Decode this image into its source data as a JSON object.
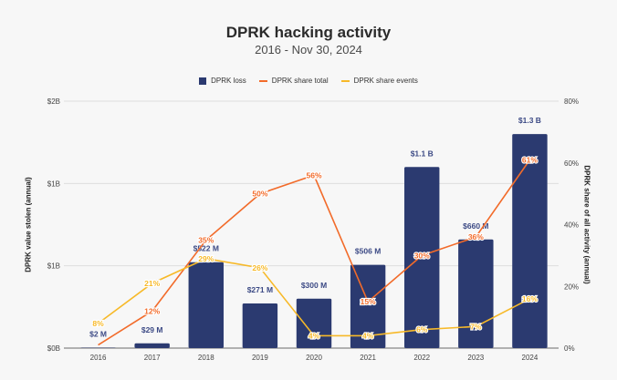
{
  "chart_data": {
    "type": "bar",
    "title": "DPRK hacking activity",
    "subtitle": "2016 - Nov 30, 2024",
    "categories": [
      "2016",
      "2017",
      "2018",
      "2019",
      "2020",
      "2021",
      "2022",
      "2023",
      "2024"
    ],
    "ylabel": "DPRK value stolen (annual)",
    "y2label": "DPRK share of all activity (annual)",
    "ylim": [
      0,
      1.5
    ],
    "y_unit": "billions USD",
    "y_ticks": [
      {
        "value": 0,
        "label": "$0B"
      },
      {
        "value": 0.5,
        "label": "$1B"
      },
      {
        "value": 1.0,
        "label": "$1B"
      },
      {
        "value": 1.5,
        "label": "$2B"
      }
    ],
    "y2lim": [
      0,
      80
    ],
    "y2_ticks": [
      {
        "value": 0,
        "label": "0%"
      },
      {
        "value": 20,
        "label": "20%"
      },
      {
        "value": 40,
        "label": "40%"
      },
      {
        "value": 60,
        "label": "60%"
      },
      {
        "value": 80,
        "label": "80%"
      }
    ],
    "grid": true,
    "legend_position": "top",
    "series": [
      {
        "name": "DPRK loss",
        "type": "bar",
        "axis": "left",
        "color": "#2b3a70",
        "values": [
          0.002,
          0.029,
          0.522,
          0.271,
          0.3,
          0.506,
          1.1,
          0.66,
          1.3
        ],
        "labels": [
          "$2  M",
          "$29  M",
          "$522  M",
          "$271  M",
          "$300  M",
          "$506  M",
          "$1.1 B",
          "$660  M",
          "$1.3 B"
        ]
      },
      {
        "name": "DPRK share total",
        "type": "line",
        "axis": "right",
        "color": "#f26b2a",
        "values": [
          1,
          12,
          35,
          50,
          56,
          15,
          30,
          36,
          61
        ],
        "labels": [
          null,
          "12%",
          "35%",
          "50%",
          "56%",
          "15%",
          "30%",
          "36%",
          "61%"
        ]
      },
      {
        "name": "DPRK share events",
        "type": "line",
        "axis": "right",
        "color": "#f7b928",
        "values": [
          8,
          21,
          29,
          26,
          4,
          4,
          6,
          7,
          16
        ],
        "labels": [
          "8%",
          "21%",
          "29%",
          "26%",
          "4%",
          "4%",
          "6%",
          "7%",
          "16%"
        ]
      }
    ]
  }
}
